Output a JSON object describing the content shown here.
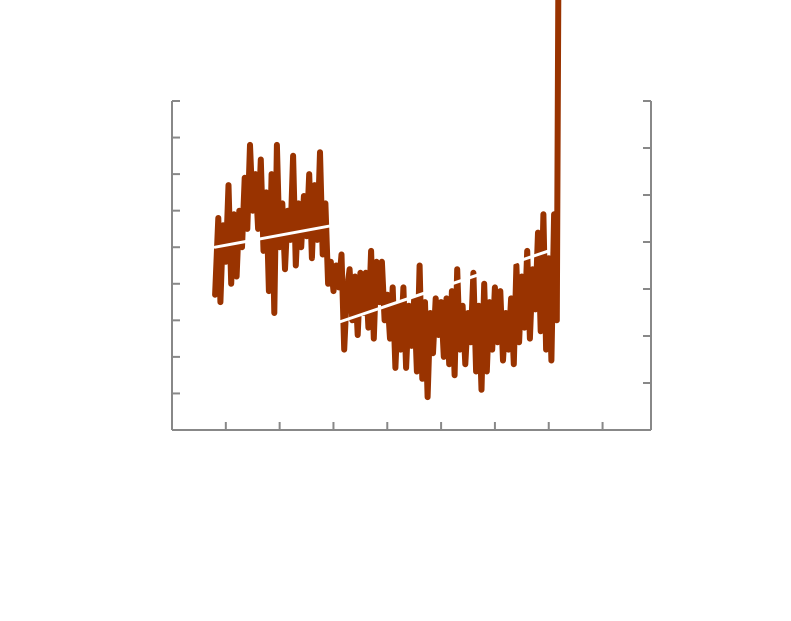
{
  "chart_data": {
    "type": "line",
    "title": "",
    "xlabel": "",
    "ylabel": "",
    "y2label": "",
    "xlim": [
      0,
      8.9
    ],
    "ylim": [
      0,
      9
    ],
    "y2lim": [
      0,
      7
    ],
    "grid": false,
    "legend": "none",
    "colors": {
      "series": "#993300",
      "trend": "#ffffff",
      "axis": "#888888"
    },
    "x_ticks": [
      1,
      2,
      3,
      4,
      5,
      6,
      7,
      8
    ],
    "y_ticks": [
      1,
      2,
      3,
      4,
      5,
      6,
      7,
      8,
      9
    ],
    "y2_ticks": [
      1,
      2,
      3,
      4,
      5,
      6,
      7
    ],
    "series": [
      {
        "values": [
          [
            0.8,
            3.7
          ],
          [
            0.86,
            5.8
          ],
          [
            0.9,
            3.5
          ],
          [
            0.95,
            5.6
          ],
          [
            1.0,
            4.6
          ],
          [
            1.05,
            6.7
          ],
          [
            1.1,
            4.0
          ],
          [
            1.15,
            5.9
          ],
          [
            1.2,
            4.2
          ],
          [
            1.25,
            6.0
          ],
          [
            1.3,
            5.0
          ],
          [
            1.35,
            6.9
          ],
          [
            1.4,
            5.5
          ],
          [
            1.45,
            7.8
          ],
          [
            1.5,
            6.0
          ],
          [
            1.55,
            7.0
          ],
          [
            1.6,
            5.5
          ],
          [
            1.65,
            7.4
          ],
          [
            1.7,
            4.9
          ],
          [
            1.75,
            6.5
          ],
          [
            1.8,
            3.8
          ],
          [
            1.85,
            7.0
          ],
          [
            1.9,
            3.2
          ],
          [
            1.95,
            7.8
          ],
          [
            2.0,
            5.0
          ],
          [
            2.05,
            6.2
          ],
          [
            2.1,
            4.4
          ],
          [
            2.15,
            6.0
          ],
          [
            2.2,
            5.2
          ],
          [
            2.25,
            7.5
          ],
          [
            2.3,
            4.5
          ],
          [
            2.35,
            6.2
          ],
          [
            2.4,
            5.0
          ],
          [
            2.45,
            6.4
          ],
          [
            2.5,
            5.3
          ],
          [
            2.55,
            7.0
          ],
          [
            2.6,
            4.7
          ],
          [
            2.65,
            6.7
          ],
          [
            2.7,
            5.2
          ],
          [
            2.75,
            7.6
          ],
          [
            2.8,
            4.8
          ],
          [
            2.85,
            6.2
          ],
          [
            2.9,
            4.0
          ],
          [
            2.95,
            4.6
          ],
          [
            3.0,
            3.8
          ],
          [
            3.05,
            4.5
          ],
          [
            3.1,
            3.9
          ],
          [
            3.15,
            4.8
          ],
          [
            3.2,
            2.2
          ],
          [
            3.25,
            3.8
          ],
          [
            3.3,
            4.4
          ],
          [
            3.35,
            3.0
          ],
          [
            3.4,
            4.2
          ],
          [
            3.45,
            2.6
          ],
          [
            3.5,
            4.3
          ],
          [
            3.55,
            3.2
          ],
          [
            3.6,
            4.3
          ],
          [
            3.65,
            2.8
          ],
          [
            3.7,
            4.9
          ],
          [
            3.75,
            2.5
          ],
          [
            3.8,
            4.6
          ],
          [
            3.85,
            3.5
          ],
          [
            3.9,
            4.6
          ],
          [
            3.95,
            3.0
          ],
          [
            4.0,
            3.7
          ],
          [
            4.05,
            2.5
          ],
          [
            4.1,
            3.9
          ],
          [
            4.15,
            1.7
          ],
          [
            4.2,
            3.4
          ],
          [
            4.25,
            2.2
          ],
          [
            4.3,
            3.9
          ],
          [
            4.35,
            1.7
          ],
          [
            4.4,
            3.4
          ],
          [
            4.45,
            2.3
          ],
          [
            4.5,
            3.6
          ],
          [
            4.55,
            1.6
          ],
          [
            4.6,
            4.5
          ],
          [
            4.65,
            1.4
          ],
          [
            4.7,
            3.5
          ],
          [
            4.75,
            0.9
          ],
          [
            4.8,
            3.2
          ],
          [
            4.85,
            2.1
          ],
          [
            4.9,
            3.6
          ],
          [
            4.95,
            2.6
          ],
          [
            5.0,
            3.5
          ],
          [
            5.05,
            2.0
          ],
          [
            5.1,
            3.6
          ],
          [
            5.15,
            1.8
          ],
          [
            5.2,
            3.8
          ],
          [
            5.25,
            1.5
          ],
          [
            5.3,
            4.4
          ],
          [
            5.35,
            2.2
          ],
          [
            5.4,
            3.4
          ],
          [
            5.45,
            1.8
          ],
          [
            5.5,
            3.2
          ],
          [
            5.55,
            2.4
          ],
          [
            5.6,
            4.3
          ],
          [
            5.65,
            1.6
          ],
          [
            5.7,
            3.4
          ],
          [
            5.75,
            1.1
          ],
          [
            5.8,
            4.0
          ],
          [
            5.85,
            1.6
          ],
          [
            5.9,
            3.5
          ],
          [
            5.95,
            2.2
          ],
          [
            6.0,
            3.9
          ],
          [
            6.05,
            2.4
          ],
          [
            6.1,
            3.8
          ],
          [
            6.15,
            1.9
          ],
          [
            6.2,
            3.2
          ],
          [
            6.25,
            2.2
          ],
          [
            6.3,
            3.6
          ],
          [
            6.35,
            1.8
          ],
          [
            6.4,
            4.5
          ],
          [
            6.45,
            2.4
          ],
          [
            6.5,
            4.2
          ],
          [
            6.55,
            2.8
          ],
          [
            6.6,
            4.9
          ],
          [
            6.65,
            2.5
          ],
          [
            6.7,
            4.4
          ],
          [
            6.75,
            3.3
          ],
          [
            6.8,
            5.4
          ],
          [
            6.85,
            2.7
          ],
          [
            6.9,
            5.9
          ],
          [
            6.95,
            2.2
          ],
          [
            7.0,
            4.7
          ],
          [
            7.05,
            1.9
          ],
          [
            7.1,
            5.9
          ],
          [
            7.15,
            3.0
          ],
          [
            7.18,
            12.5
          ]
        ]
      },
      {
        "values": [
          [
            0.8,
            5.0
          ],
          [
            3.0,
            5.6
          ]
        ]
      },
      {
        "values": [
          [
            3.0,
            2.9
          ],
          [
            7.0,
            4.9
          ]
        ]
      }
    ]
  }
}
